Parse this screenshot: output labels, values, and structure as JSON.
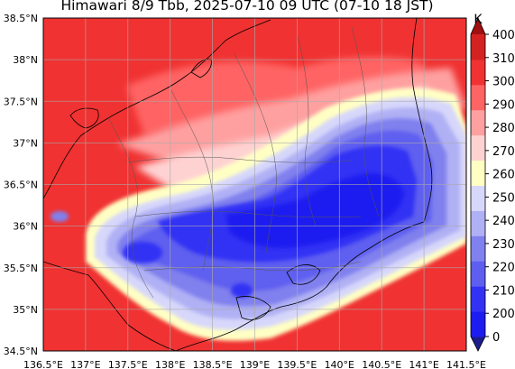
{
  "title": "Himawari 8/9 Tbb, 2025-07-10 09 UTC (07-10 18 JST)",
  "map": {
    "lon_range": [
      136.5,
      141.5
    ],
    "lat_range": [
      34.5,
      38.5
    ],
    "grid": true,
    "lon_ticks": [
      "136.5°E",
      "137°E",
      "137.5°E",
      "138°E",
      "138.5°E",
      "139°E",
      "139.5°E",
      "140°E",
      "140.5°E",
      "141°E",
      "141.5°E"
    ],
    "lat_ticks": [
      "34.5°N",
      "35°N",
      "35.5°N",
      "36°N",
      "36.5°N",
      "37°N",
      "37.5°N",
      "38°N",
      "38.5°N"
    ]
  },
  "colorbar": {
    "unit": "K",
    "labels": [
      "0",
      "200",
      "210",
      "220",
      "230",
      "240",
      "250",
      "260",
      "270",
      "280",
      "290",
      "300",
      "310",
      "400"
    ],
    "colors": [
      "#1c1c8c",
      "#1c1cf0",
      "#3232f5",
      "#5e5ef0",
      "#8080ee",
      "#b0b0f5",
      "#d7d7fb",
      "#ffffc4",
      "#ffd2d2",
      "#ffa0a0",
      "#ff6464",
      "#f03232",
      "#d42222",
      "#a01010"
    ]
  }
}
